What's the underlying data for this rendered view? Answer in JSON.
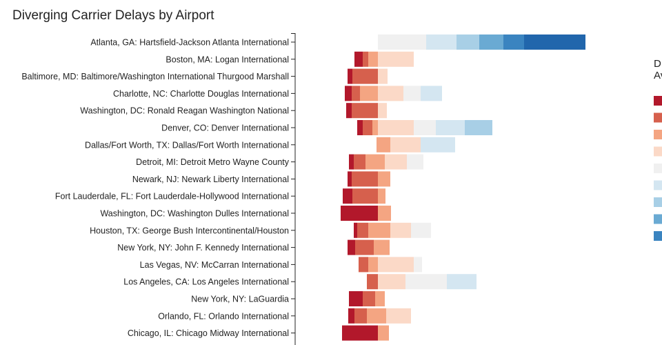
{
  "chart_data": {
    "type": "bar",
    "orientation": "horizontal",
    "stacked": "diverging",
    "title": "Diverging Carrier Delays by Airport",
    "legend_title": "D\nAv",
    "legend_position": "right",
    "grid": false,
    "palette": [
      "#b2182b",
      "#d6604d",
      "#f4a582",
      "#fbd9c7",
      "#f0f0f0",
      "#d4e6f1",
      "#a8cfe6",
      "#6aaad3",
      "#3a84c0",
      "#2166ac"
    ],
    "categories": [
      "Atlanta, GA: Hartsfield-Jackson Atlanta International",
      "Boston, MA: Logan International",
      "Baltimore, MD: Baltimore/Washington International Thurgood Marshall",
      "Charlotte, NC: Charlotte Douglas International",
      "Washington, DC: Ronald Reagan Washington National",
      "Denver, CO: Denver International",
      "Dallas/Fort Worth, TX: Dallas/Fort Worth International",
      "Detroit, MI: Detroit Metro Wayne County",
      "Newark, NJ: Newark Liberty International",
      "Fort Lauderdale, FL: Fort Lauderdale-Hollywood International",
      "Washington, DC: Washington Dulles International",
      "Houston, TX: George Bush Intercontinental/Houston",
      "New York, NY: John F. Kennedy International",
      "Las Vegas, NV: McCarran International",
      "Los Angeles, CA: Los Angeles International",
      "New York, NY: LaGuardia",
      "Orlando, FL: Orlando International",
      "Chicago, IL: Chicago Midway International"
    ],
    "bars": [
      [
        [
          0,
          70,
          4
        ],
        [
          70,
          114,
          5
        ],
        [
          114,
          147,
          6
        ],
        [
          147,
          182,
          7
        ],
        [
          182,
          212,
          8
        ],
        [
          212,
          277,
          9
        ],
        [
          277,
          301,
          9
        ]
      ],
      [
        [
          -34,
          -22,
          0
        ],
        [
          -22,
          -14,
          1
        ],
        [
          -14,
          0,
          2
        ],
        [
          0,
          26,
          3
        ],
        [
          26,
          52,
          3
        ]
      ],
      [
        [
          -44,
          -37,
          0
        ],
        [
          -37,
          0,
          1
        ],
        [
          0,
          14,
          3
        ]
      ],
      [
        [
          -48,
          -38,
          0
        ],
        [
          -38,
          -26,
          1
        ],
        [
          -26,
          0,
          2
        ],
        [
          0,
          12,
          3
        ],
        [
          12,
          37,
          3
        ],
        [
          37,
          62,
          4
        ],
        [
          62,
          93,
          5
        ]
      ],
      [
        [
          -46,
          -38,
          0
        ],
        [
          -38,
          0,
          1
        ],
        [
          0,
          13,
          3
        ]
      ],
      [
        [
          -30,
          -22,
          0
        ],
        [
          -22,
          -8,
          1
        ],
        [
          -8,
          0,
          2
        ],
        [
          0,
          52,
          3
        ],
        [
          52,
          84,
          4
        ],
        [
          84,
          126,
          5
        ],
        [
          126,
          166,
          6
        ]
      ],
      [
        [
          -2,
          0,
          2
        ],
        [
          0,
          18,
          2
        ],
        [
          18,
          48,
          3
        ],
        [
          48,
          62,
          3
        ],
        [
          62,
          96,
          5
        ],
        [
          96,
          112,
          5
        ]
      ],
      [
        [
          -42,
          -35,
          0
        ],
        [
          -35,
          -18,
          1
        ],
        [
          -18,
          0,
          2
        ],
        [
          0,
          10,
          2
        ],
        [
          10,
          26,
          3
        ],
        [
          26,
          42,
          3
        ],
        [
          42,
          66,
          4
        ]
      ],
      [
        [
          -44,
          -38,
          0
        ],
        [
          -38,
          0,
          1
        ],
        [
          0,
          18,
          2
        ]
      ],
      [
        [
          -51,
          -37,
          0
        ],
        [
          -37,
          0,
          1
        ],
        [
          0,
          11,
          2
        ]
      ],
      [
        [
          -54,
          -6,
          0
        ],
        [
          -6,
          0,
          0
        ],
        [
          0,
          19,
          2
        ]
      ],
      [
        [
          -35,
          -30,
          0
        ],
        [
          -30,
          -14,
          1
        ],
        [
          -14,
          0,
          2
        ],
        [
          0,
          18,
          2
        ],
        [
          18,
          48,
          3
        ],
        [
          48,
          77,
          4
        ]
      ],
      [
        [
          -44,
          -33,
          0
        ],
        [
          -33,
          -6,
          1
        ],
        [
          -6,
          0,
          2
        ],
        [
          0,
          17,
          2
        ]
      ],
      [
        [
          -28,
          -14,
          1
        ],
        [
          -14,
          0,
          2
        ],
        [
          0,
          30,
          3
        ],
        [
          30,
          52,
          3
        ],
        [
          52,
          64,
          4
        ]
      ],
      [
        [
          -16,
          0,
          1
        ],
        [
          0,
          40,
          3
        ],
        [
          40,
          100,
          4
        ],
        [
          100,
          143,
          5
        ]
      ],
      [
        [
          -42,
          -22,
          0
        ],
        [
          -22,
          -4,
          1
        ],
        [
          -4,
          0,
          2
        ],
        [
          0,
          10,
          2
        ]
      ],
      [
        [
          -43,
          -34,
          0
        ],
        [
          -34,
          -16,
          1
        ],
        [
          -16,
          0,
          2
        ],
        [
          0,
          12,
          2
        ],
        [
          12,
          32,
          3
        ],
        [
          32,
          48,
          3
        ]
      ],
      [
        [
          -52,
          0,
          0
        ],
        [
          0,
          16,
          2
        ]
      ]
    ]
  }
}
